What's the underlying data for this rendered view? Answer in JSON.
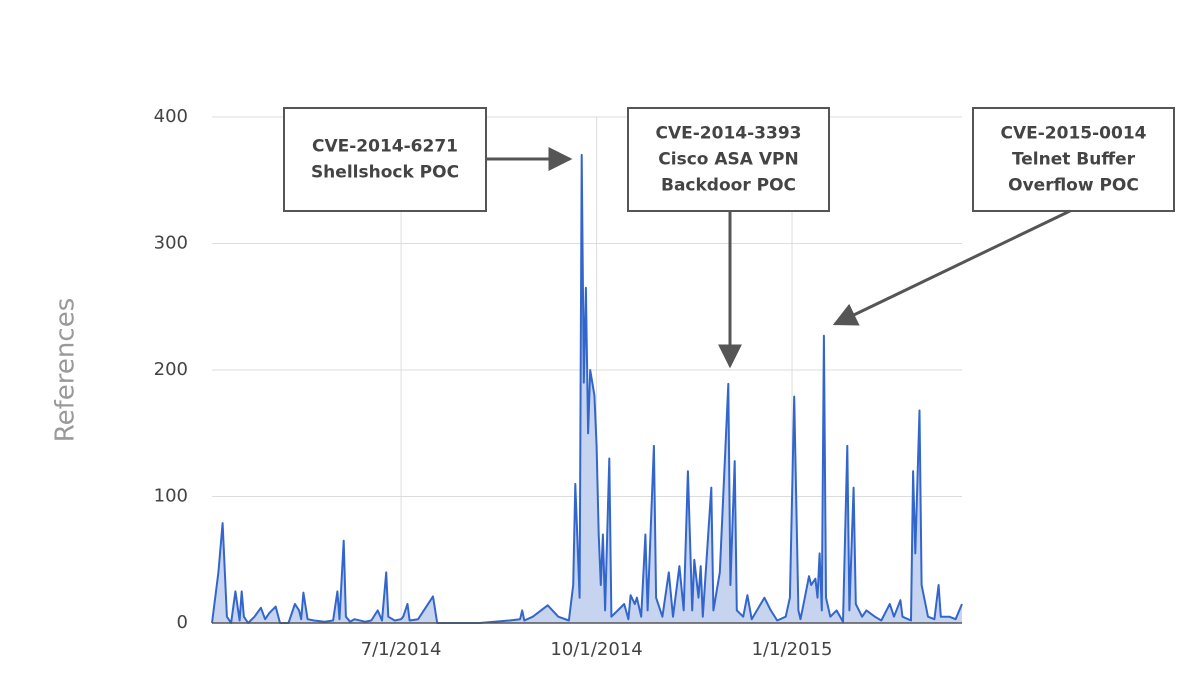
{
  "chart_data": {
    "type": "area",
    "y_label": "References",
    "color": "#3366cc",
    "fill": "#c6d4f0",
    "grid": true,
    "xlim": [
      "2014-04-03",
      "2015-03-22"
    ],
    "xticks": [
      {
        "value": "2014-07-01",
        "label": "7/1/2014"
      },
      {
        "value": "2014-10-01",
        "label": "10/1/2014"
      },
      {
        "value": "2015-01-01",
        "label": "1/1/2015"
      }
    ],
    "ylim": [
      0,
      400
    ],
    "yticks": [
      0,
      100,
      200,
      300,
      400
    ],
    "x": [
      "2014-04-03",
      "2014-04-06",
      "2014-04-08",
      "2014-04-10",
      "2014-04-12",
      "2014-04-14",
      "2014-04-16",
      "2014-04-17",
      "2014-04-18",
      "2014-04-20",
      "2014-04-23",
      "2014-04-26",
      "2014-04-28",
      "2014-04-30",
      "2014-05-03",
      "2014-05-05",
      "2014-05-09",
      "2014-05-12",
      "2014-05-14",
      "2014-05-15",
      "2014-05-16",
      "2014-05-18",
      "2014-05-21",
      "2014-05-26",
      "2014-05-30",
      "2014-06-01",
      "2014-06-02",
      "2014-06-04",
      "2014-06-05",
      "2014-06-07",
      "2014-06-09",
      "2014-06-14",
      "2014-06-17",
      "2014-06-20",
      "2014-06-22",
      "2014-06-24",
      "2014-06-25",
      "2014-06-28",
      "2014-07-01",
      "2014-07-02",
      "2014-07-04",
      "2014-07-05",
      "2014-07-09",
      "2014-07-16",
      "2014-07-18",
      "2014-08-07",
      "2014-08-21",
      "2014-08-26",
      "2014-08-27",
      "2014-08-28",
      "2014-09-01",
      "2014-09-08",
      "2014-09-13",
      "2014-09-18",
      "2014-09-20",
      "2014-09-21",
      "2014-09-23",
      "2014-09-24",
      "2014-09-25",
      "2014-09-26",
      "2014-09-27",
      "2014-09-28",
      "2014-09-30",
      "2014-10-01",
      "2014-10-02",
      "2014-10-03",
      "2014-10-04",
      "2014-10-05",
      "2014-10-07",
      "2014-10-08",
      "2014-10-11",
      "2014-10-14",
      "2014-10-16",
      "2014-10-17",
      "2014-10-19",
      "2014-10-20",
      "2014-10-22",
      "2014-10-24",
      "2014-10-25",
      "2014-10-28",
      "2014-10-29",
      "2014-11-01",
      "2014-11-04",
      "2014-11-06",
      "2014-11-09",
      "2014-11-11",
      "2014-11-13",
      "2014-11-15",
      "2014-11-16",
      "2014-11-18",
      "2014-11-19",
      "2014-11-20",
      "2014-11-24",
      "2014-11-25",
      "2014-11-28",
      "2014-12-02",
      "2014-12-03",
      "2014-12-05",
      "2014-12-06",
      "2014-12-09",
      "2014-12-11",
      "2014-12-13",
      "2014-12-19",
      "2014-12-22",
      "2014-12-25",
      "2014-12-29",
      "2014-12-31",
      "2015-01-02",
      "2015-01-04",
      "2015-01-05",
      "2015-01-07",
      "2015-01-09",
      "2015-01-10",
      "2015-01-12",
      "2015-01-13",
      "2015-01-14",
      "2015-01-15",
      "2015-01-16",
      "2015-01-17",
      "2015-01-19",
      "2015-01-22",
      "2015-01-25",
      "2015-01-27",
      "2015-01-28",
      "2015-01-30",
      "2015-01-31",
      "2015-02-03",
      "2015-02-05",
      "2015-02-09",
      "2015-02-12",
      "2015-02-16",
      "2015-02-18",
      "2015-02-21",
      "2015-02-22",
      "2015-02-26",
      "2015-02-27",
      "2015-02-28",
      "2015-03-02",
      "2015-03-03",
      "2015-03-06",
      "2015-03-09",
      "2015-03-11",
      "2015-03-12",
      "2015-03-16",
      "2015-03-19",
      "2015-03-22"
    ],
    "values": [
      0,
      40,
      79,
      5,
      0,
      25,
      2,
      25,
      5,
      0,
      5,
      12,
      3,
      8,
      13,
      0,
      0,
      15,
      10,
      3,
      24,
      3,
      2,
      1,
      2,
      25,
      3,
      65,
      5,
      1,
      3,
      1,
      2,
      10,
      2,
      40,
      5,
      2,
      3,
      5,
      15,
      2,
      3,
      21,
      0,
      0,
      2,
      3,
      10,
      2,
      5,
      14,
      5,
      2,
      30,
      110,
      20,
      370,
      190,
      265,
      150,
      200,
      180,
      140,
      70,
      30,
      70,
      10,
      130,
      5,
      10,
      15,
      3,
      22,
      15,
      20,
      5,
      70,
      10,
      140,
      20,
      5,
      40,
      5,
      45,
      10,
      120,
      10,
      50,
      20,
      45,
      5,
      107,
      10,
      40,
      189,
      30,
      128,
      10,
      5,
      22,
      3,
      20,
      10,
      2,
      5,
      20,
      179,
      10,
      3,
      20,
      37,
      30,
      35,
      20,
      55,
      10,
      227,
      20,
      5,
      10,
      1,
      140,
      10,
      107,
      15,
      5,
      10,
      5,
      2,
      15,
      5,
      18,
      5,
      2,
      120,
      55,
      168,
      30,
      5,
      3,
      30,
      5,
      5,
      3,
      15
    ],
    "annotations": [
      {
        "lines": [
          "CVE-2014-6271",
          "Shellshock POC"
        ]
      },
      {
        "lines": [
          "CVE-2014-3393",
          "Cisco ASA VPN",
          "Backdoor POC"
        ]
      },
      {
        "lines": [
          "CVE-2015-0014",
          "Telnet Buffer",
          "Overflow POC"
        ]
      }
    ]
  }
}
